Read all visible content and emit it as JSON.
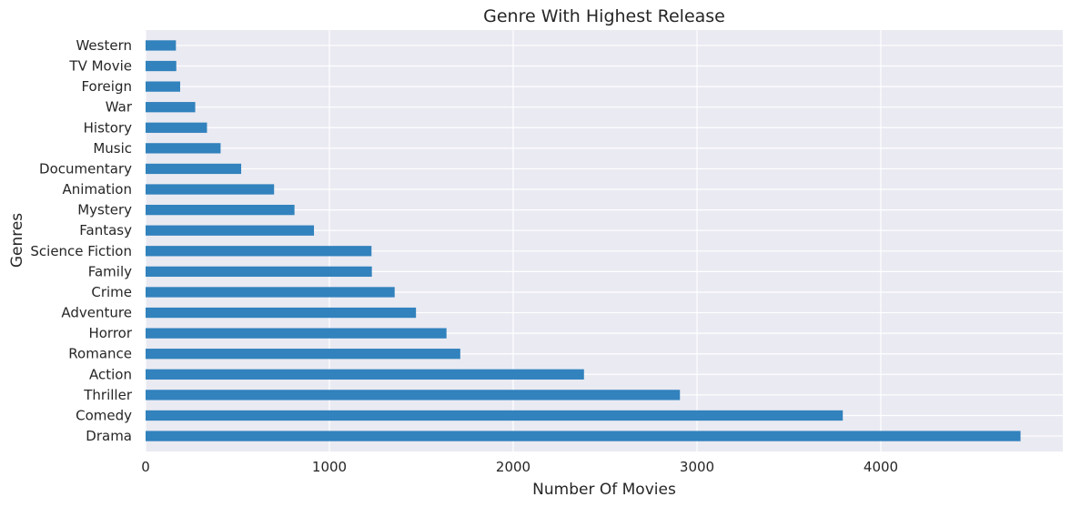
{
  "chart_data": {
    "type": "bar",
    "orientation": "horizontal",
    "title": "Genre With Highest Release",
    "xlabel": "Number Of Movies",
    "ylabel": "Genres",
    "xlim": [
      0,
      4990
    ],
    "xticks": [
      0,
      1000,
      2000,
      3000,
      4000
    ],
    "categories": [
      "Drama",
      "Comedy",
      "Thriller",
      "Action",
      "Romance",
      "Horror",
      "Adventure",
      "Crime",
      "Family",
      "Science Fiction",
      "Fantasy",
      "Mystery",
      "Animation",
      "Documentary",
      "Music",
      "History",
      "War",
      "Foreign",
      "TV Movie",
      "Western"
    ],
    "values": [
      4760,
      3793,
      2907,
      2385,
      1712,
      1637,
      1471,
      1355,
      1231,
      1229,
      916,
      810,
      699,
      520,
      408,
      334,
      270,
      188,
      167,
      165
    ],
    "bar_color": "#3182bd",
    "plot_background": "#eaeaf2",
    "grid": true,
    "grid_color": "#ffffff",
    "legend": null
  }
}
